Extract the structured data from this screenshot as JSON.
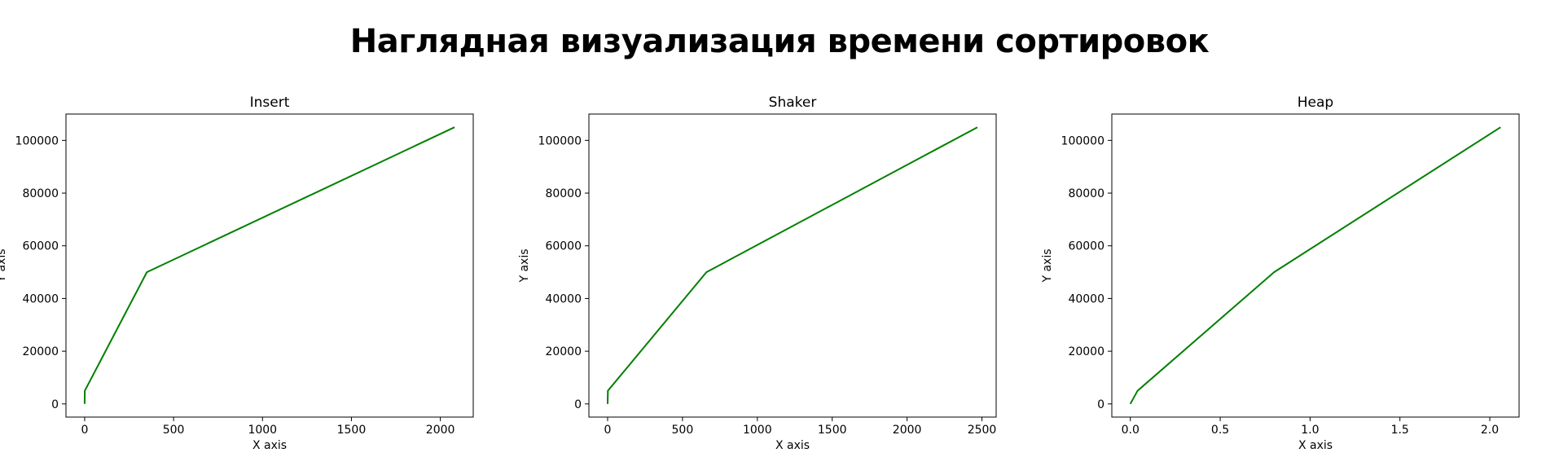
{
  "figure": {
    "title": "Наглядная визуализация времени сортировок",
    "line_color": "#008000"
  },
  "chart_data": [
    {
      "type": "line",
      "title": "Insert",
      "xlabel": "X axis",
      "ylabel": "Y axis",
      "xlim": [
        -105,
        2185
      ],
      "ylim": [
        -5000,
        110000
      ],
      "xticks": [
        0,
        500,
        1000,
        1500,
        2000
      ],
      "yticks": [
        0,
        20000,
        40000,
        60000,
        80000,
        100000
      ],
      "grid": false,
      "x": [
        0,
        1,
        350,
        2080
      ],
      "y": [
        0,
        5000,
        50000,
        105000
      ]
    },
    {
      "type": "line",
      "title": "Shaker",
      "xlabel": "X axis",
      "ylabel": "Y axis",
      "xlim": [
        -125,
        2595
      ],
      "ylim": [
        -5000,
        110000
      ],
      "xticks": [
        0,
        500,
        1000,
        1500,
        2000,
        2500
      ],
      "yticks": [
        0,
        20000,
        40000,
        60000,
        80000,
        100000
      ],
      "grid": false,
      "x": [
        0,
        2,
        660,
        2470
      ],
      "y": [
        0,
        5000,
        50000,
        105000
      ]
    },
    {
      "type": "line",
      "title": "Heap",
      "xlabel": "X axis",
      "ylabel": "Y axis",
      "xlim": [
        -0.103,
        2.163
      ],
      "ylim": [
        -5000,
        110000
      ],
      "xticks": [
        0.0,
        0.5,
        1.0,
        1.5,
        2.0
      ],
      "xtick_labels": [
        "0.0",
        "0.5",
        "1.0",
        "1.5",
        "2.0"
      ],
      "yticks": [
        0,
        20000,
        40000,
        60000,
        80000,
        100000
      ],
      "grid": false,
      "x": [
        0.0,
        0.04,
        0.8,
        2.06
      ],
      "y": [
        0,
        5000,
        50000,
        105000
      ]
    }
  ]
}
